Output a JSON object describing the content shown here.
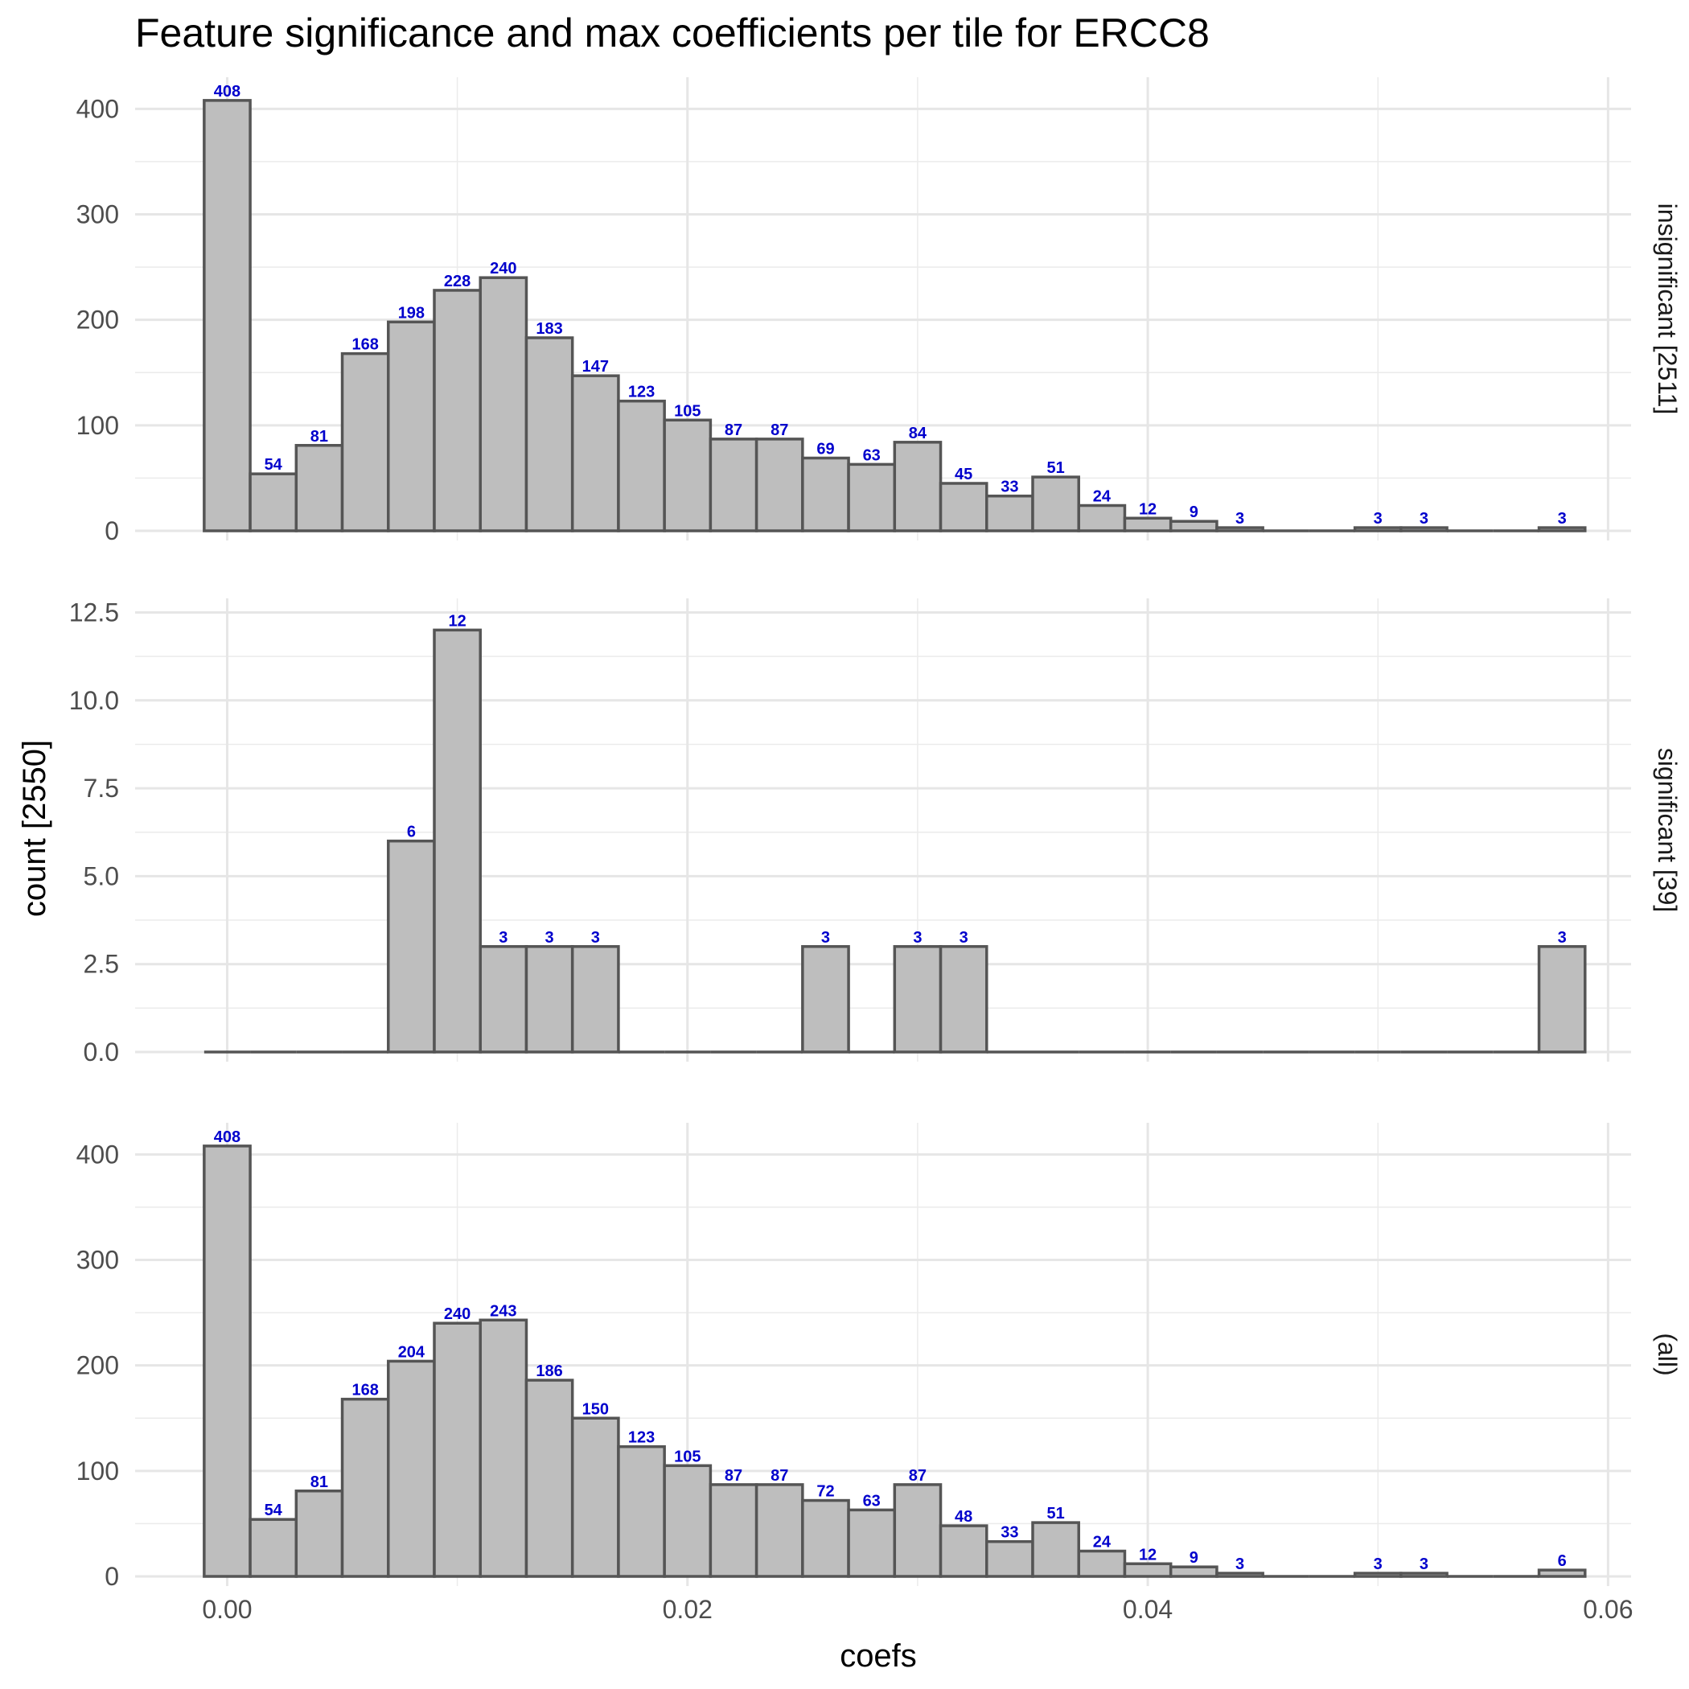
{
  "chart_data": {
    "type": "bar",
    "title": "Feature significance and max coefficients per tile for ERCC8",
    "xlabel": "coefs",
    "ylabel": "count [2550]",
    "xlim": [
      -0.004,
      0.061
    ],
    "x_ticks": [
      "0.00",
      "0.02",
      "0.04",
      "0.06"
    ],
    "x_tick_values": [
      0,
      0.02,
      0.04,
      0.06
    ],
    "bin_width": 0.002,
    "bin_centers": [
      0.0,
      0.002,
      0.004,
      0.006,
      0.008,
      0.01,
      0.012,
      0.014,
      0.016,
      0.018,
      0.02,
      0.022,
      0.024,
      0.026,
      0.028,
      0.03,
      0.032,
      0.034,
      0.036,
      0.038,
      0.04,
      0.042,
      0.044,
      0.046,
      0.048,
      0.05,
      0.052,
      0.054,
      0.056,
      0.058
    ],
    "bar_fill": "#bebebe",
    "bar_stroke": "#555555",
    "label_color": "#0000cc",
    "grid": true,
    "facets": [
      {
        "strip_label": "insignificant [2511]",
        "values": [
          408,
          54,
          81,
          168,
          198,
          228,
          240,
          183,
          147,
          123,
          105,
          87,
          87,
          69,
          63,
          84,
          45,
          33,
          51,
          24,
          12,
          9,
          3,
          0,
          0,
          3,
          3,
          0,
          0,
          3
        ],
        "ylim": [
          0,
          430
        ],
        "y_ticks": [
          "0",
          "100",
          "200",
          "300",
          "400"
        ],
        "y_tick_values": [
          0,
          100,
          200,
          300,
          400
        ]
      },
      {
        "strip_label": "significant [39]",
        "values": [
          0,
          0,
          0,
          0,
          6,
          12,
          3,
          3,
          3,
          0,
          0,
          0,
          0,
          3,
          0,
          3,
          3,
          0,
          0,
          0,
          0,
          0,
          0,
          0,
          0,
          0,
          0,
          0,
          0,
          3
        ],
        "ylim": [
          0,
          12.9
        ],
        "y_ticks": [
          "0.0",
          "2.5",
          "5.0",
          "7.5",
          "10.0",
          "12.5"
        ],
        "y_tick_values": [
          0,
          2.5,
          5,
          7.5,
          10,
          12.5
        ]
      },
      {
        "strip_label": "(all)",
        "values": [
          408,
          54,
          81,
          168,
          204,
          240,
          243,
          186,
          150,
          123,
          105,
          87,
          87,
          72,
          63,
          87,
          48,
          33,
          51,
          24,
          12,
          9,
          3,
          0,
          0,
          3,
          3,
          0,
          0,
          6
        ],
        "ylim": [
          0,
          430
        ],
        "y_ticks": [
          "0",
          "100",
          "200",
          "300",
          "400"
        ],
        "y_tick_values": [
          0,
          100,
          200,
          300,
          400
        ]
      }
    ]
  }
}
